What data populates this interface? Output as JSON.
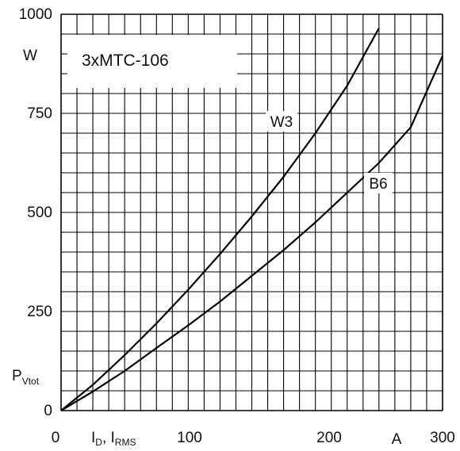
{
  "chart_data": {
    "type": "line",
    "title": "3xMTC-106",
    "xlabel": {
      "I1": "I",
      "sub1": "D",
      "sep": ", I",
      "sub2": "RMS"
    },
    "xunit": "A",
    "ylabel": {
      "main": "P",
      "sub": "Vtot"
    },
    "yunit": "W",
    "xlim": [
      0,
      300
    ],
    "ylim": [
      0,
      1000
    ],
    "x_ticks": [
      "0",
      "100",
      "200",
      "300"
    ],
    "y_ticks": [
      "0",
      "250",
      "500",
      "750",
      "1000"
    ],
    "grid": true,
    "series": [
      {
        "name": "W3",
        "x": [
          0,
          25,
          50,
          75,
          100,
          125,
          150,
          175,
          200,
          225,
          250
        ],
        "y": [
          0,
          65,
          140,
          220,
          305,
          395,
          490,
          590,
          700,
          820,
          965
        ]
      },
      {
        "name": "B6",
        "x": [
          0,
          25,
          50,
          75,
          100,
          125,
          150,
          175,
          200,
          225,
          250,
          275,
          300
        ],
        "y": [
          0,
          48,
          100,
          158,
          215,
          275,
          340,
          405,
          475,
          550,
          625,
          715,
          895
        ]
      }
    ]
  },
  "colors": {
    "line": "#000000",
    "grid": "#000000"
  }
}
